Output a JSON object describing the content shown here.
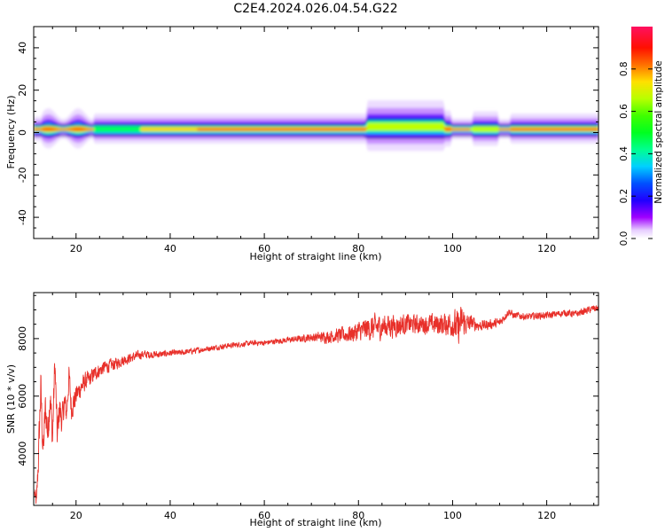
{
  "figure_title": "C2E4.2024.026.04.54.G22",
  "colors": {
    "snr_line": "#e8302a",
    "axes": "#000000"
  },
  "chart_data": [
    {
      "type": "heatmap",
      "xlabel": "Height of straight line (km)",
      "ylabel": "Frequency (Hz)",
      "xlim": [
        11,
        131
      ],
      "ylim": [
        -50,
        50
      ],
      "xticks": [
        20,
        40,
        60,
        80,
        100,
        120
      ],
      "yticks": [
        -40,
        -20,
        0,
        20,
        40
      ],
      "grid": false,
      "colorbar": {
        "label": "Normalized spectral amplitude",
        "range": [
          0,
          1
        ],
        "ticks": [
          "0.0",
          "0.2",
          "0.4",
          "0.6",
          "0.8"
        ],
        "colormap": "gist_rainbow"
      },
      "band": {
        "center_hz": 1.5,
        "ridge_amplitude": 1.0,
        "upper_edge_hz": 3.5,
        "lower_edge_hz": -1.5,
        "outer_halo_hz": [
          -5,
          8
        ],
        "notes": "energy concentrated near 0-2 Hz; broader spread around 82-98 km"
      }
    },
    {
      "type": "line",
      "xlabel": "Height of straight line (km)",
      "ylabel": "SNR (10 * v/v)",
      "xlim": [
        11,
        131
      ],
      "ylim": [
        2200,
        9600
      ],
      "xticks": [
        20,
        40,
        60,
        80,
        100,
        120
      ],
      "yticks": [
        4000,
        6000,
        8000
      ],
      "grid": false,
      "series": [
        {
          "x": [
            11.2,
            11.6,
            12,
            12.5,
            13,
            13.5,
            14,
            14.5,
            15,
            15.5,
            16,
            16.5,
            17,
            17.5,
            18,
            18.5,
            19,
            19.5,
            20,
            21,
            22,
            23,
            24,
            25,
            26,
            27,
            28,
            30,
            32,
            34,
            36,
            38,
            40,
            42,
            44,
            46,
            48,
            50,
            52,
            55,
            58,
            60,
            62,
            65,
            68,
            70,
            72,
            75,
            78,
            80,
            82,
            84,
            86,
            88,
            90,
            92,
            94,
            96,
            98,
            100,
            101,
            102,
            103,
            104,
            106,
            108,
            110,
            111,
            112,
            113,
            114,
            116,
            118,
            120,
            122,
            124,
            126,
            128,
            130,
            131
          ],
          "y": [
            2600,
            2300,
            3800,
            6300,
            4000,
            5600,
            4700,
            6100,
            4500,
            7200,
            4600,
            5600,
            5100,
            5800,
            5400,
            6700,
            5600,
            5800,
            6000,
            6300,
            6500,
            6600,
            6800,
            6900,
            7000,
            7050,
            7100,
            7250,
            7350,
            7450,
            7450,
            7450,
            7500,
            7500,
            7550,
            7600,
            7650,
            7700,
            7750,
            7800,
            7850,
            7850,
            7900,
            7950,
            8000,
            8050,
            8050,
            8100,
            8150,
            8250,
            8350,
            8400,
            8450,
            8450,
            8500,
            8500,
            8500,
            8500,
            8500,
            8550,
            8300,
            8600,
            8500,
            8550,
            8450,
            8500,
            8550,
            8750,
            8950,
            8800,
            8800,
            8750,
            8800,
            8800,
            8850,
            8900,
            8850,
            8950,
            9050,
            9050
          ],
          "noise_amplitude": [
            300,
            300,
            700,
            800,
            700,
            700,
            700,
            700,
            700,
            600,
            600,
            600,
            500,
            500,
            500,
            500,
            500,
            450,
            400,
            380,
            350,
            300,
            280,
            260,
            250,
            240,
            230,
            200,
            180,
            160,
            140,
            130,
            120,
            110,
            110,
            110,
            100,
            100,
            100,
            100,
            100,
            100,
            100,
            110,
            130,
            160,
            200,
            260,
            320,
            380,
            450,
            480,
            450,
            420,
            380,
            350,
            340,
            380,
            420,
            500,
            700,
            600,
            400,
            280,
            200,
            180,
            180,
            150,
            140,
            130,
            130,
            130,
            130,
            130,
            130,
            130,
            130,
            130,
            130,
            130
          ]
        }
      ]
    }
  ]
}
